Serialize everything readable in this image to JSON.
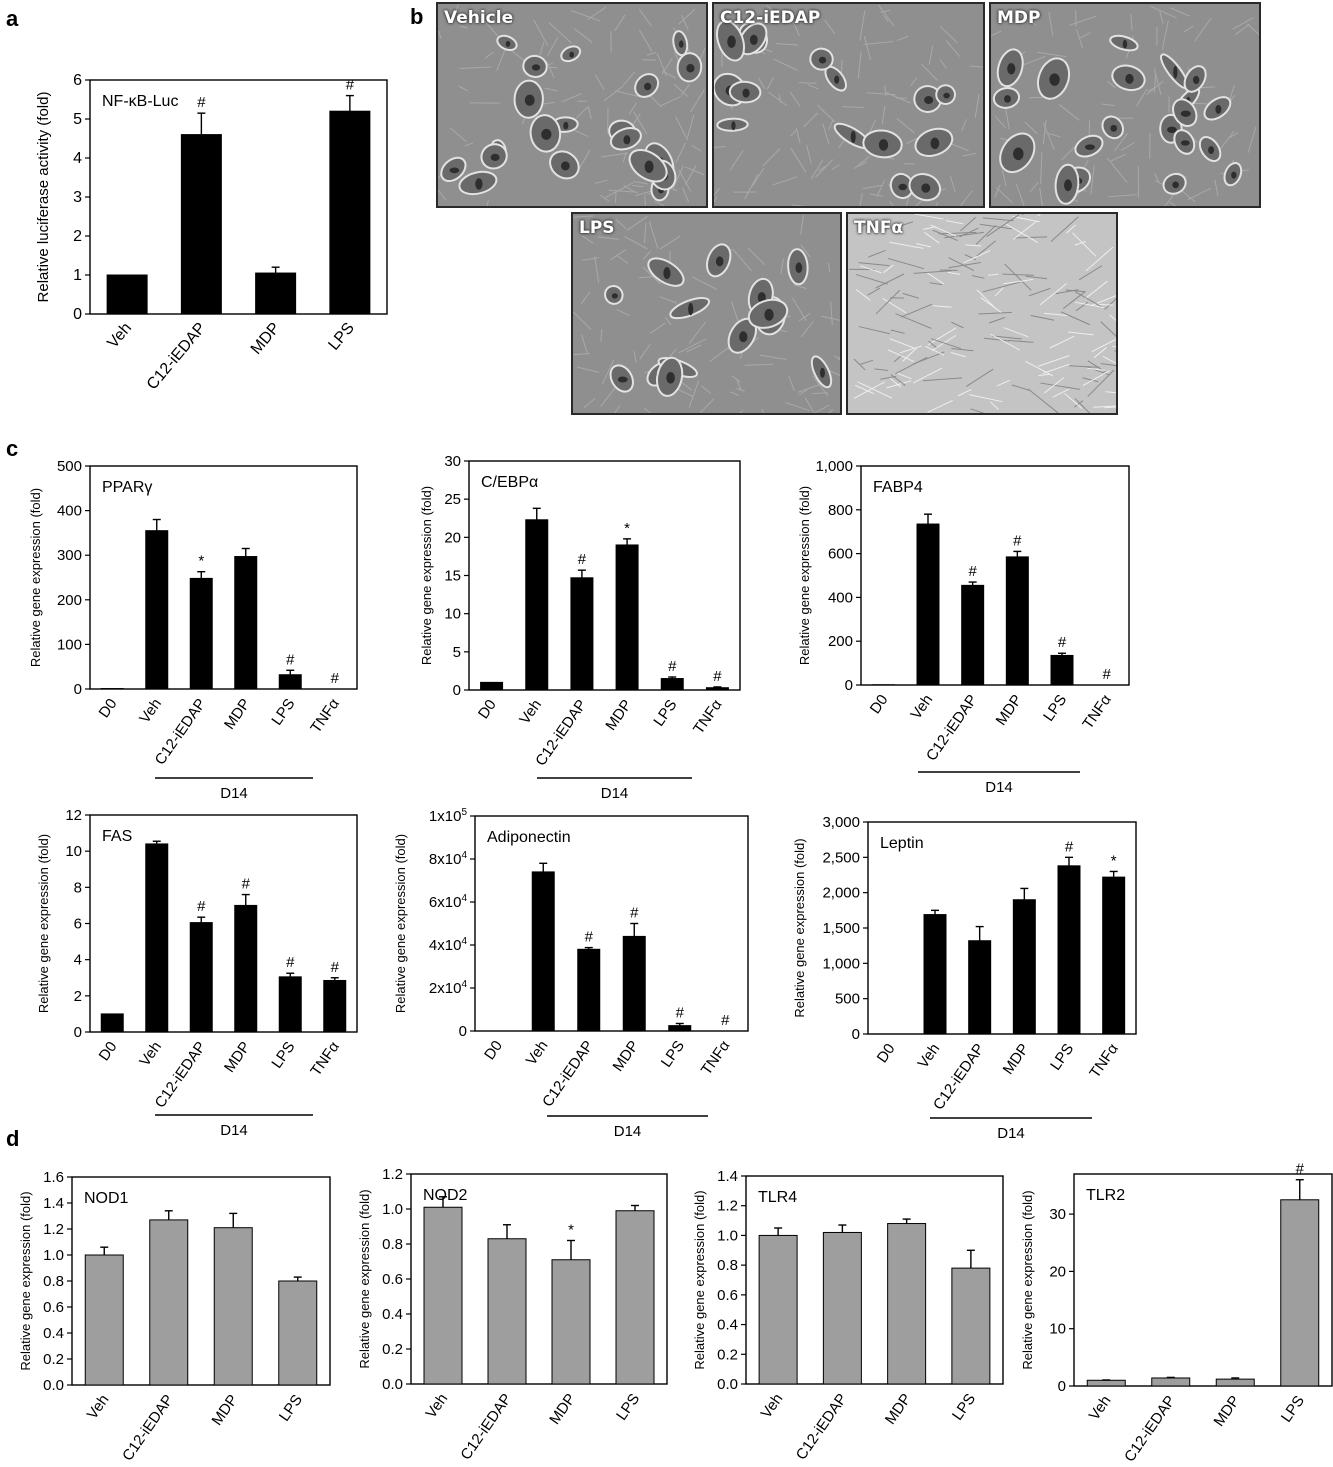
{
  "panel_letters": [
    "a",
    "b",
    "c",
    "d"
  ],
  "micrographs": [
    {
      "label": "Vehicle",
      "texture": "cells"
    },
    {
      "label": "C12-iEDAP",
      "texture": "cells"
    },
    {
      "label": "MDP",
      "texture": "cells"
    },
    {
      "label": "LPS",
      "texture": "cells"
    },
    {
      "label": "TNFα",
      "texture": "fibroblast"
    }
  ],
  "colors": {
    "black_bar": "#000000",
    "grey_bar": "#9e9e9e",
    "micro_bg": "#8f8f8f",
    "micro_bg_light": "#c4c4c4"
  },
  "chart_data": [
    {
      "id": "a",
      "type": "bar",
      "annotation": "NF-κB-Luc",
      "ylabel": "Relative luciferase activity (fold)",
      "categories": [
        "Veh",
        "C12-iEDAP",
        "MDP",
        "LPS"
      ],
      "values": [
        1.0,
        4.6,
        1.05,
        5.2
      ],
      "errors": [
        0,
        0.55,
        0.15,
        0.4
      ],
      "marks": [
        "",
        "#",
        "",
        "#"
      ],
      "ylim": [
        0,
        6
      ],
      "yticks": [
        "0",
        "1",
        "2",
        "3",
        "4",
        "5",
        "6"
      ],
      "bar_color": "black",
      "group_label": ""
    },
    {
      "id": "c1",
      "type": "bar",
      "annotation": "PPARγ",
      "ylabel": "Relative gene expression (fold)",
      "categories": [
        "D0",
        "Veh",
        "C12-iEDAP",
        "MDP",
        "LPS",
        "TNFα"
      ],
      "values": [
        1,
        355,
        248,
        297,
        32,
        0
      ],
      "errors": [
        0,
        25,
        15,
        18,
        10,
        0
      ],
      "marks": [
        "",
        "",
        "*",
        "",
        "#",
        "#"
      ],
      "ylim": [
        0,
        500
      ],
      "yticks": [
        "0",
        "100",
        "200",
        "300",
        "400",
        "500"
      ],
      "bar_color": "black",
      "group_label": "D14"
    },
    {
      "id": "c2",
      "type": "bar",
      "annotation": "C/EBPα",
      "ylabel": "Relative gene expression (fold)",
      "categories": [
        "D0",
        "Veh",
        "C12-iEDAP",
        "MDP",
        "LPS",
        "TNFα"
      ],
      "values": [
        1,
        22.3,
        14.7,
        19.0,
        1.5,
        0.3
      ],
      "errors": [
        0,
        1.5,
        1.0,
        0.8,
        0.2,
        0.1
      ],
      "marks": [
        "",
        "",
        "#",
        "*",
        "#",
        "#"
      ],
      "ylim": [
        0,
        30
      ],
      "yticks": [
        "0",
        "5",
        "10",
        "15",
        "20",
        "25",
        "30"
      ],
      "bar_color": "black",
      "group_label": "D14"
    },
    {
      "id": "c3",
      "type": "bar",
      "annotation": "FABP4",
      "ylabel": "Relative gene expression (fold)",
      "categories": [
        "D0",
        "Veh",
        "C12-iEDAP",
        "MDP",
        "LPS",
        "TNFα"
      ],
      "values": [
        1,
        735,
        455,
        585,
        135,
        0
      ],
      "errors": [
        0,
        45,
        15,
        25,
        10,
        0
      ],
      "marks": [
        "",
        "",
        "#",
        "#",
        "#",
        "#"
      ],
      "ylim": [
        0,
        1000
      ],
      "yticks": [
        "0",
        "200",
        "400",
        "600",
        "800",
        "1,000"
      ],
      "bar_color": "black",
      "group_label": "D14"
    },
    {
      "id": "c4",
      "type": "bar",
      "annotation": "FAS",
      "ylabel": "Relative gene expression (fold)",
      "categories": [
        "D0",
        "Veh",
        "C12-iEDAP",
        "MDP",
        "LPS",
        "TNFα"
      ],
      "values": [
        1.0,
        10.4,
        6.05,
        7.0,
        3.05,
        2.85
      ],
      "errors": [
        0,
        0.15,
        0.3,
        0.6,
        0.2,
        0.15
      ],
      "marks": [
        "",
        "",
        "#",
        "#",
        "#",
        "#"
      ],
      "ylim": [
        0,
        12
      ],
      "yticks": [
        "0",
        "2",
        "4",
        "6",
        "8",
        "10",
        "12"
      ],
      "bar_color": "black",
      "group_label": "D14"
    },
    {
      "id": "c5",
      "type": "bar",
      "annotation": "Adiponectin",
      "ylabel": "Relative gene expression (fold)",
      "categories": [
        "D0",
        "Veh",
        "C12-iEDAP",
        "MDP",
        "LPS",
        "TNFα"
      ],
      "values": [
        0,
        74000,
        38000,
        44000,
        2500,
        0
      ],
      "errors": [
        0,
        4000,
        800,
        6000,
        1000,
        0
      ],
      "marks": [
        "",
        "",
        "#",
        "#",
        "#",
        "#"
      ],
      "ylim": [
        0,
        100000
      ],
      "yticks": [
        "0",
        "2x10^4",
        "4x10^4",
        "6x10^4",
        "8x10^4",
        "1x10^5"
      ],
      "bar_color": "black",
      "group_label": "D14"
    },
    {
      "id": "c6",
      "type": "bar",
      "annotation": "Leptin",
      "ylabel": "Relative gene expression (fold)",
      "categories": [
        "D0",
        "Veh",
        "C12-iEDAP",
        "MDP",
        "LPS",
        "TNFα"
      ],
      "values": [
        0,
        1690,
        1320,
        1900,
        2380,
        2220
      ],
      "errors": [
        0,
        60,
        200,
        160,
        120,
        80
      ],
      "marks": [
        "",
        "",
        "",
        "",
        "#",
        "*"
      ],
      "ylim": [
        0,
        3000
      ],
      "yticks": [
        "0",
        "500",
        "1,000",
        "1,500",
        "2,000",
        "2,500",
        "3,000"
      ],
      "bar_color": "black",
      "group_label": "D14"
    },
    {
      "id": "d1",
      "type": "bar",
      "annotation": "NOD1",
      "ylabel": "Relative gene expression (fold)",
      "categories": [
        "Veh",
        "C12-iEDAP",
        "MDP",
        "LPS"
      ],
      "values": [
        1.0,
        1.27,
        1.21,
        0.8
      ],
      "errors": [
        0.06,
        0.07,
        0.11,
        0.03
      ],
      "marks": [
        "",
        "",
        "",
        ""
      ],
      "ylim": [
        0,
        1.6
      ],
      "yticks": [
        "0.0",
        "0.2",
        "0.4",
        "0.6",
        "0.8",
        "1.0",
        "1.2",
        "1.4",
        "1.6"
      ],
      "bar_color": "grey",
      "group_label": ""
    },
    {
      "id": "d2",
      "type": "bar",
      "annotation": "NOD2",
      "ylabel": "Relative gene expression (fold)",
      "categories": [
        "Veh",
        "C12-iEDAP",
        "MDP",
        "LPS"
      ],
      "values": [
        1.01,
        0.83,
        0.71,
        0.99
      ],
      "errors": [
        0.06,
        0.08,
        0.11,
        0.03
      ],
      "marks": [
        "",
        "",
        "*",
        ""
      ],
      "ylim": [
        0,
        1.2
      ],
      "yticks": [
        "0.0",
        "0.2",
        "0.4",
        "0.6",
        "0.8",
        "1.0",
        "1.2"
      ],
      "bar_color": "grey",
      "group_label": ""
    },
    {
      "id": "d3",
      "type": "bar",
      "annotation": "TLR4",
      "ylabel": "Relative gene expression (fold)",
      "categories": [
        "Veh",
        "C12-iEDAP",
        "MDP",
        "LPS"
      ],
      "values": [
        1.0,
        1.02,
        1.08,
        0.78
      ],
      "errors": [
        0.05,
        0.05,
        0.03,
        0.12
      ],
      "marks": [
        "",
        "",
        "",
        ""
      ],
      "ylim": [
        0,
        1.4
      ],
      "yticks": [
        "0.0",
        "0.2",
        "0.4",
        "0.6",
        "0.8",
        "1.0",
        "1.2",
        "1.4"
      ],
      "bar_color": "grey",
      "group_label": ""
    },
    {
      "id": "d4",
      "type": "bar",
      "annotation": "TLR2",
      "ylabel": "Relative gene expression (fold)",
      "categories": [
        "Veh",
        "C12-iEDAP",
        "MDP",
        "LPS"
      ],
      "values": [
        1.0,
        1.4,
        1.2,
        32.5
      ],
      "errors": [
        0.05,
        0.1,
        0.2,
        3.5
      ],
      "marks": [
        "",
        "",
        "",
        "#"
      ],
      "ylim": [
        0,
        37
      ],
      "yticks": [
        "0",
        "10",
        "20",
        "30"
      ],
      "bar_color": "grey",
      "group_label": ""
    }
  ]
}
